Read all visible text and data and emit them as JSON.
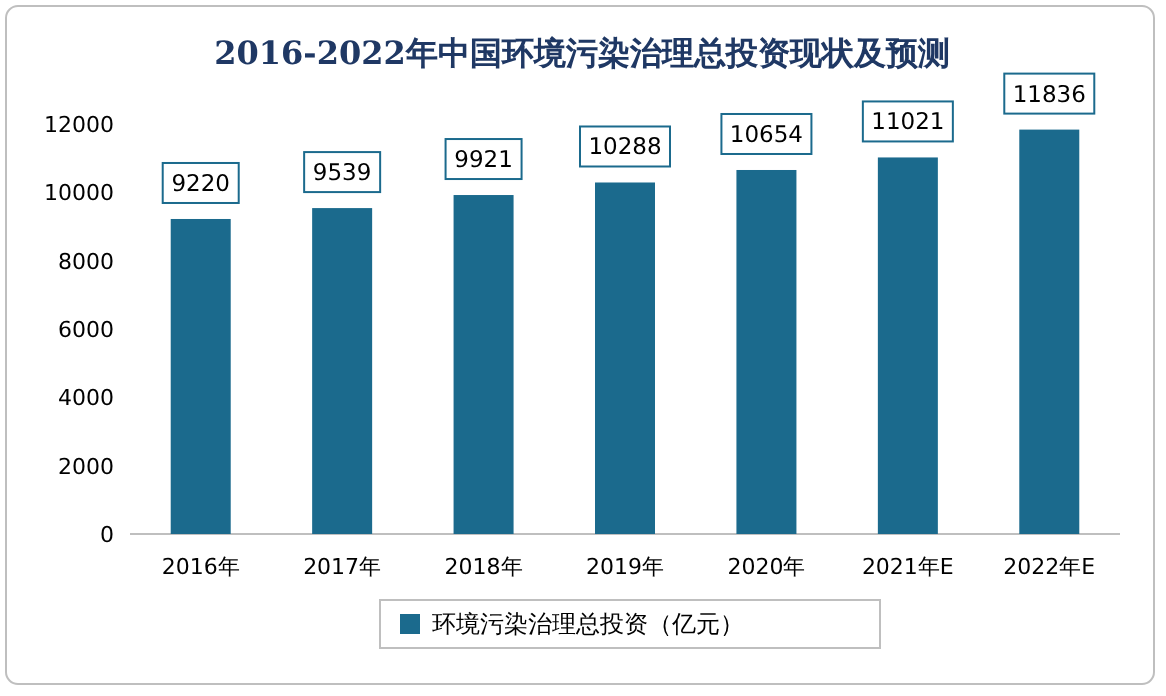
{
  "chart_data": {
    "type": "bar",
    "title": "2016-2022年中国环境污染治理总投资现状及预测",
    "categories": [
      "2016年",
      "2017年",
      "2018年",
      "2019年",
      "2020年",
      "2021年E",
      "2022年E"
    ],
    "series": [
      {
        "name": "环境污染治理总投资（亿元）",
        "color": "#1b6a8d",
        "values": [
          9220,
          9539,
          9921,
          10288,
          10654,
          11021,
          11836
        ]
      }
    ],
    "ylim": [
      0,
      12000
    ],
    "yticks": [
      0,
      2000,
      4000,
      6000,
      8000,
      10000,
      12000
    ],
    "data_labels": true,
    "legend": "bottom"
  }
}
